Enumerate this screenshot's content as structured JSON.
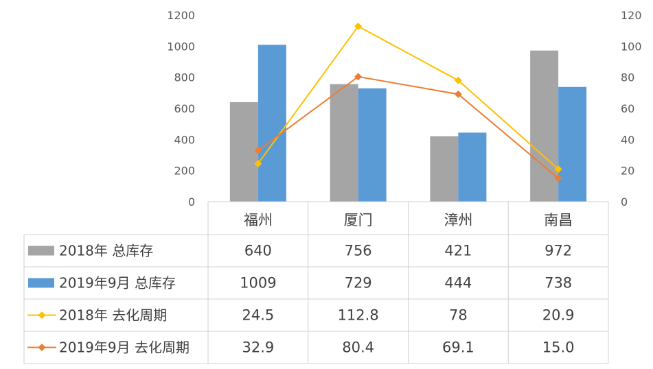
{
  "chart_data": {
    "type": "bar",
    "categories": [
      "福州",
      "厦门",
      "漳州",
      "南昌"
    ],
    "series": [
      {
        "name": "2018年 总库存",
        "kind": "bar",
        "axis": "left",
        "color": "#A5A5A5",
        "values": [
          640,
          756,
          421,
          972
        ],
        "labels": [
          "640",
          "756",
          "421",
          "972"
        ]
      },
      {
        "name": "2019年9月 总库存",
        "kind": "bar",
        "axis": "left",
        "color": "#5B9BD5",
        "values": [
          1009,
          729,
          444,
          738
        ],
        "labels": [
          "1009",
          "729",
          "444",
          "738"
        ]
      },
      {
        "name": "2018年 去化周期",
        "kind": "line",
        "axis": "right",
        "color": "#FFC000",
        "values": [
          24.5,
          112.8,
          78,
          20.9
        ],
        "labels": [
          "24.5",
          "112.8",
          "78",
          "20.9"
        ]
      },
      {
        "name": "2019年9月 去化周期",
        "kind": "line",
        "axis": "right",
        "color": "#ED7D31",
        "values": [
          32.9,
          80.4,
          69.1,
          15.0
        ],
        "labels": [
          "32.9",
          "80.4",
          "69.1",
          "15.0"
        ]
      }
    ],
    "y_left": {
      "ylim": [
        0,
        1200
      ],
      "ticks": [
        "0",
        "200",
        "400",
        "600",
        "800",
        "1000",
        "1200"
      ]
    },
    "y_right": {
      "ylim": [
        0,
        120
      ],
      "ticks": [
        "0",
        "20",
        "40",
        "60",
        "80",
        "100",
        "120"
      ]
    },
    "grid": false,
    "legend": "data-table"
  }
}
